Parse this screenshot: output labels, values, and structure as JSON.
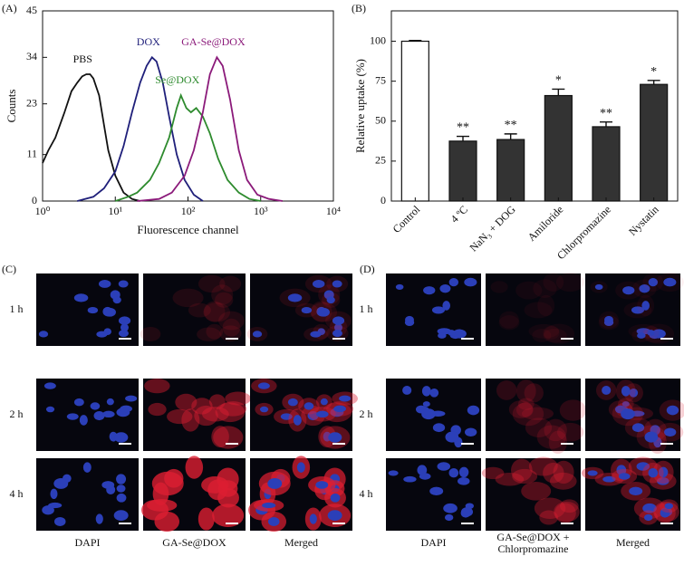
{
  "chart_data": [
    {
      "type": "line",
      "panel_label": "(A)",
      "xlabel": "Fluorescence channel",
      "ylabel": "Counts",
      "xscale": "log",
      "xlim": [
        1,
        10000
      ],
      "xticks": [
        {
          "value": 1,
          "label": "10⁰"
        },
        {
          "value": 10,
          "label": "10¹"
        },
        {
          "value": 100,
          "label": "10²"
        },
        {
          "value": 1000,
          "label": "10³"
        },
        {
          "value": 10000,
          "label": "10⁴"
        }
      ],
      "ylim": [
        0,
        45
      ],
      "yticks": [
        0,
        11,
        23,
        34,
        45
      ],
      "series": [
        {
          "name": "PBS",
          "color": "#111111",
          "x": [
            1,
            1.2,
            1.5,
            2,
            2.5,
            3,
            3.5,
            4,
            4.5,
            5,
            6,
            7,
            8,
            10,
            13,
            17,
            22
          ],
          "values": [
            9,
            12,
            15,
            21,
            26,
            28,
            29.5,
            30,
            30,
            29,
            25,
            18,
            12,
            6,
            2,
            0.5,
            0
          ]
        },
        {
          "name": "DOX",
          "color": "#1f1f7a",
          "x": [
            3,
            5,
            7,
            10,
            13,
            17,
            22,
            27,
            32,
            37,
            45,
            55,
            70,
            90,
            120,
            160
          ],
          "values": [
            0,
            1,
            3,
            7,
            13,
            21,
            28,
            32,
            34,
            33,
            28,
            20,
            11,
            5,
            1.5,
            0
          ]
        },
        {
          "name": "Se@DOX",
          "color": "#2e8b2e",
          "x": [
            10,
            15,
            20,
            30,
            40,
            55,
            70,
            80,
            95,
            110,
            130,
            160,
            200,
            260,
            350,
            500,
            700,
            1000
          ],
          "values": [
            0,
            1,
            2,
            5,
            9,
            15,
            22,
            25,
            22,
            21,
            22,
            20,
            16,
            10,
            5,
            2,
            0.5,
            0
          ]
        },
        {
          "name": "GA-Se@DOX",
          "color": "#8b1a7a",
          "x": [
            20,
            40,
            60,
            90,
            120,
            160,
            200,
            250,
            300,
            380,
            500,
            650,
            900,
            1300,
            2000
          ],
          "values": [
            0,
            0.5,
            2,
            6,
            12,
            21,
            30,
            34,
            32,
            24,
            12,
            5,
            1.5,
            0.5,
            0
          ]
        }
      ]
    },
    {
      "type": "bar",
      "panel_label": "(B)",
      "ylabel": "Relative uptake (%)",
      "categories": [
        "Control",
        "4 ºC",
        "NaN₃ + DOG",
        "Amiloride",
        "Chlorpromazine",
        "Nystatin"
      ],
      "values": [
        100,
        37.5,
        38.5,
        66,
        46.5,
        73
      ],
      "errors": [
        0.5,
        3,
        3.5,
        4,
        3,
        2.5
      ],
      "annotations": [
        null,
        "**",
        "**",
        "*",
        "**",
        "*"
      ],
      "colors": [
        "#ffffff",
        "#333333",
        "#333333",
        "#333333",
        "#333333",
        "#333333"
      ],
      "ylim": [
        0,
        119
      ],
      "yticks": [
        0,
        25,
        50,
        75,
        100
      ]
    }
  ],
  "panels": [
    {
      "label": "(C)",
      "rows": [
        "1 h",
        "2 h",
        "4 h"
      ],
      "columns": [
        [
          "DAPI"
        ],
        [
          "GA-Se@DOX"
        ],
        [
          "Merged"
        ]
      ]
    },
    {
      "label": "(D)",
      "rows": [
        "1 h",
        "2 h",
        "4 h"
      ],
      "columns": [
        [
          "DAPI"
        ],
        [
          "GA-Se@DOX +",
          "Chlorpromazine"
        ],
        [
          "Merged"
        ]
      ]
    }
  ]
}
